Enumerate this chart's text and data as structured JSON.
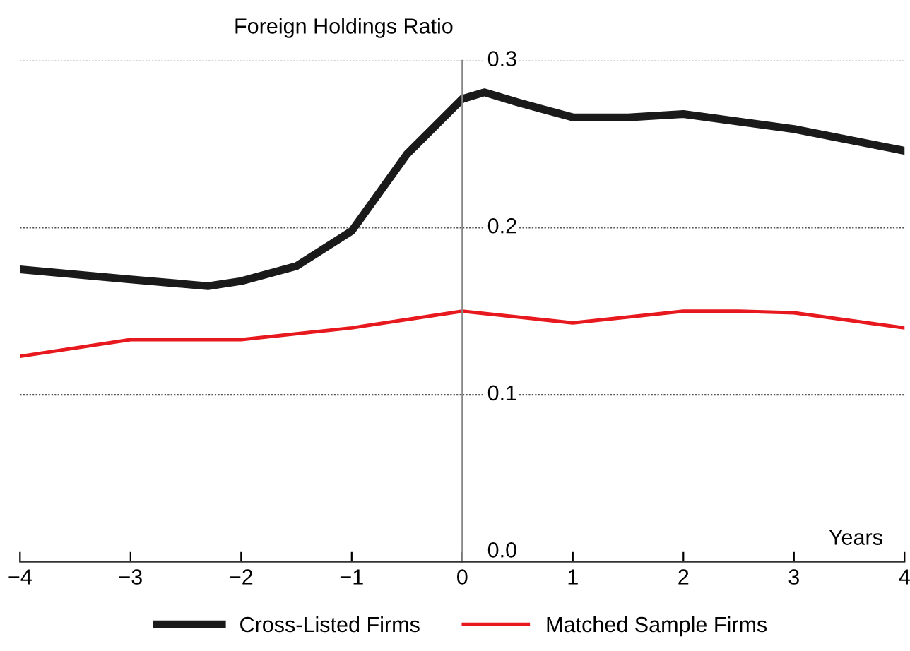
{
  "chart_data": {
    "type": "line",
    "ylabel": "Foreign Holdings Ratio",
    "xlabel": "Years",
    "xlim": [
      -4,
      4
    ],
    "xticks": [
      {
        "value": -4,
        "label": "−4"
      },
      {
        "value": -3,
        "label": "−3"
      },
      {
        "value": -2,
        "label": "−2"
      },
      {
        "value": -1,
        "label": "−1"
      },
      0,
      1,
      2,
      3,
      4
    ],
    "ylim": [
      0,
      0.3
    ],
    "yticks": [
      {
        "value": 0,
        "label": "0.0"
      },
      0.1,
      0.2,
      0.3
    ],
    "grid": "y",
    "legend": "bottom",
    "line_style": "solid",
    "marker": "none",
    "series": [
      {
        "name": "Cross-Listed Firms",
        "color": "#1a1a1a",
        "x": [
          -4,
          -3,
          -2.3,
          -2,
          -1.5,
          -1,
          -0.5,
          0,
          0.2,
          0.5,
          1,
          1.5,
          2,
          3,
          4
        ],
        "values": [
          0.175,
          0.169,
          0.165,
          0.168,
          0.177,
          0.198,
          0.244,
          0.277,
          0.281,
          0.275,
          0.266,
          0.266,
          0.268,
          0.259,
          0.246
        ]
      },
      {
        "name": "Matched Sample Firms",
        "color": "#e8191e",
        "x": [
          -4,
          -3,
          -2,
          -1,
          0,
          1,
          2,
          2.5,
          3,
          4
        ],
        "values": [
          0.123,
          0.133,
          0.133,
          0.14,
          0.15,
          0.143,
          0.15,
          0.15,
          0.149,
          0.14
        ]
      }
    ]
  }
}
